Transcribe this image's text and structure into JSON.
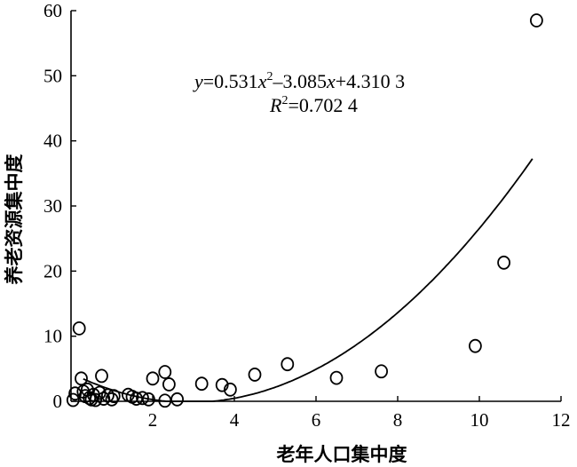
{
  "chart_data": {
    "type": "scatter",
    "xlabel": "老年人口集中度",
    "ylabel": "养老资源集中度",
    "xlim": [
      0,
      12
    ],
    "ylim": [
      0,
      60
    ],
    "x_ticks": [
      2,
      4,
      6,
      8,
      10,
      12
    ],
    "y_ticks": [
      0,
      10,
      20,
      30,
      40,
      50,
      60
    ],
    "grid": false,
    "legend": "none",
    "points": [
      {
        "x": 0.05,
        "y": 0.2
      },
      {
        "x": 0.1,
        "y": 1.2
      },
      {
        "x": 0.2,
        "y": 11.2
      },
      {
        "x": 0.25,
        "y": 3.5
      },
      {
        "x": 0.3,
        "y": 1.5
      },
      {
        "x": 0.35,
        "y": 0.8
      },
      {
        "x": 0.4,
        "y": 1.8
      },
      {
        "x": 0.45,
        "y": 0.5
      },
      {
        "x": 0.5,
        "y": 0.3
      },
      {
        "x": 0.55,
        "y": 1.0
      },
      {
        "x": 0.6,
        "y": 0.2
      },
      {
        "x": 0.7,
        "y": 1.3
      },
      {
        "x": 0.75,
        "y": 3.9
      },
      {
        "x": 0.8,
        "y": 0.4
      },
      {
        "x": 0.9,
        "y": 0.9
      },
      {
        "x": 1.0,
        "y": 0.3
      },
      {
        "x": 1.05,
        "y": 0.8
      },
      {
        "x": 1.4,
        "y": 1.0
      },
      {
        "x": 1.5,
        "y": 0.7
      },
      {
        "x": 1.6,
        "y": 0.4
      },
      {
        "x": 1.75,
        "y": 0.5
      },
      {
        "x": 1.9,
        "y": 0.3
      },
      {
        "x": 2.0,
        "y": 3.5
      },
      {
        "x": 2.3,
        "y": 4.5
      },
      {
        "x": 2.3,
        "y": 0.1
      },
      {
        "x": 2.4,
        "y": 2.6
      },
      {
        "x": 2.6,
        "y": 0.3
      },
      {
        "x": 3.2,
        "y": 2.7
      },
      {
        "x": 3.7,
        "y": 2.5
      },
      {
        "x": 3.9,
        "y": 1.8
      },
      {
        "x": 4.5,
        "y": 4.1
      },
      {
        "x": 5.3,
        "y": 5.7
      },
      {
        "x": 6.5,
        "y": 3.6
      },
      {
        "x": 7.6,
        "y": 4.6
      },
      {
        "x": 9.9,
        "y": 8.5
      },
      {
        "x": 10.6,
        "y": 21.3
      },
      {
        "x": 11.4,
        "y": 58.5
      }
    ],
    "trendline": {
      "type": "polynomial",
      "coefficients": [
        0.531,
        -3.085,
        4.3103
      ],
      "x_range": [
        0.3,
        11.3
      ]
    },
    "equation_line1_parts": [
      "y",
      "=0.531",
      "x",
      "2",
      "–3.085",
      "x",
      "+4.310 3"
    ],
    "equation_line2_parts": [
      "R",
      "2",
      "=0.702 4"
    ]
  }
}
